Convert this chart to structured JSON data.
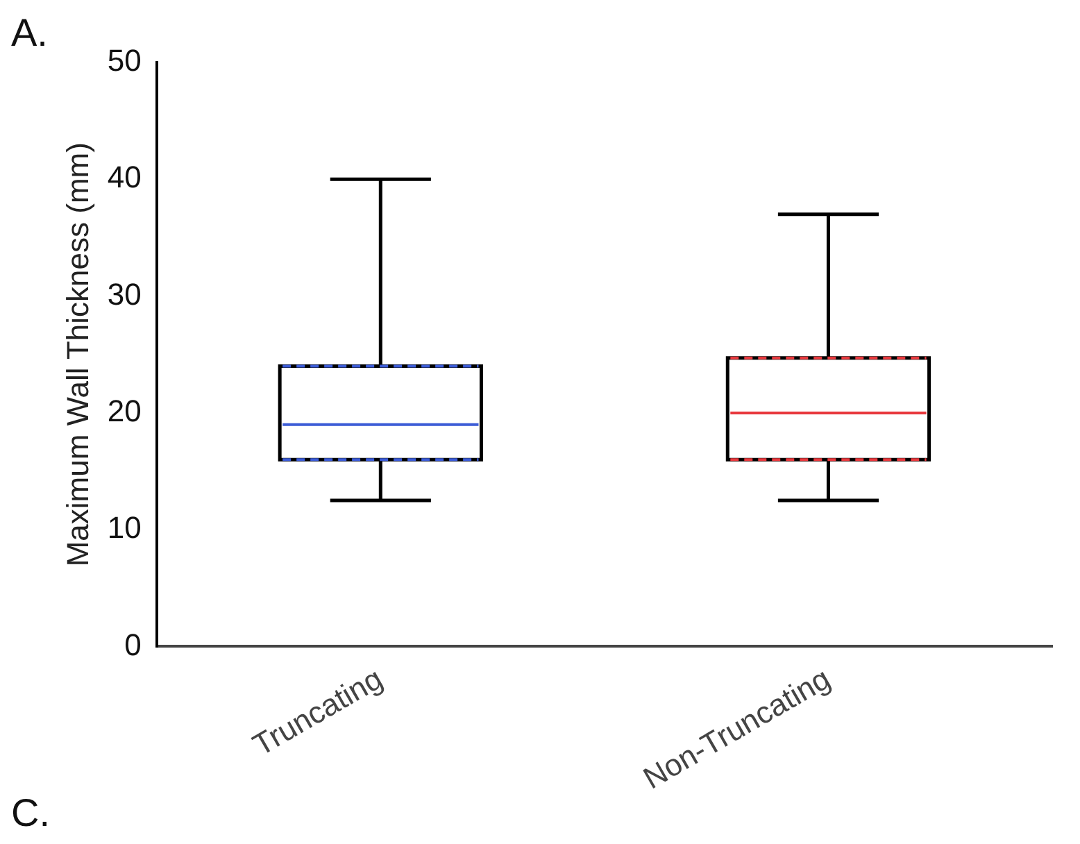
{
  "chart_data": {
    "type": "box",
    "ylabel": "Maximum Wall Thickness (mm)",
    "categories": [
      "Truncating",
      "Non-Truncating"
    ],
    "colors": [
      "#3b5bd6",
      "#e8383d"
    ],
    "boxes": [
      {
        "low": 12.5,
        "q1": 16,
        "median": 19,
        "q3": 24,
        "high": 40
      },
      {
        "low": 12.5,
        "q1": 16,
        "median": 20,
        "q3": 24.7,
        "high": 37
      }
    ],
    "ylim": [
      0,
      50
    ],
    "yticks": [
      0,
      10,
      20,
      30,
      40,
      50
    ],
    "grid": false,
    "legend": false,
    "annotations": [
      "A.",
      "C."
    ]
  }
}
